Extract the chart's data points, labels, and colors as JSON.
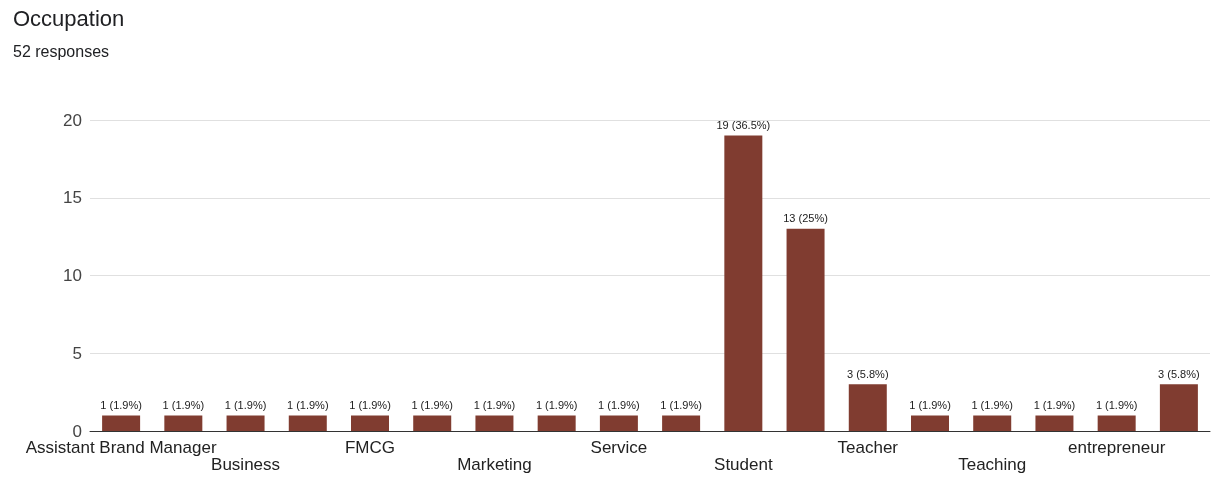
{
  "chart_data": {
    "type": "bar",
    "title": "Occupation",
    "subtitle": "52 responses",
    "categories": [
      "Assistant Brand Manager",
      null,
      "Business",
      null,
      "FMCG",
      null,
      "Marketing",
      null,
      "Service",
      null,
      "Student",
      null,
      "Teacher",
      null,
      "Teaching",
      null,
      "entrepreneur",
      null
    ],
    "values": [
      1,
      1,
      1,
      1,
      1,
      1,
      1,
      1,
      1,
      1,
      19,
      13,
      3,
      1,
      1,
      1,
      1,
      3
    ],
    "value_labels": [
      "1 (1.9%)",
      "1 (1.9%)",
      "1 (1.9%)",
      "1 (1.9%)",
      "1 (1.9%)",
      "1 (1.9%)",
      "1 (1.9%)",
      "1 (1.9%)",
      "1 (1.9%)",
      "1 (1.9%)",
      "19 (36.5%)",
      "13 (25%)",
      "3 (5.8%)",
      "1 (1.9%)",
      "1 (1.9%)",
      "1 (1.9%)",
      "1 (1.9%)",
      "3 (5.8%)"
    ],
    "color": "#803c30",
    "ylim": [
      0,
      20
    ],
    "yticks": [
      0,
      5,
      10,
      15,
      20
    ],
    "grid": "y"
  }
}
